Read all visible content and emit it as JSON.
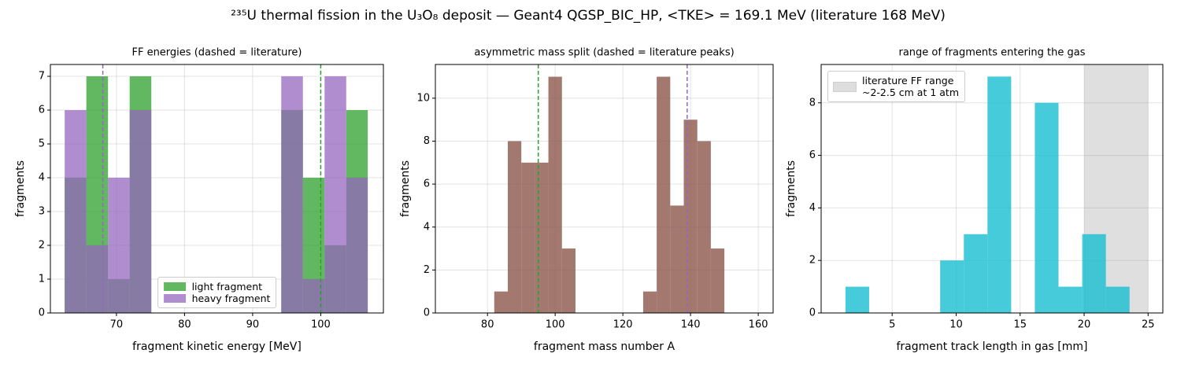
{
  "title": "²³⁵U thermal fission in the U₃O₈ deposit — Geant4 QGSP_BIC_HP, <TKE> = 169.1 MeV (literature 168 MeV)",
  "chart_data": [
    {
      "type": "histogram",
      "title": "FF energies (dashed = literature)",
      "xlabel": "fragment kinetic energy [MeV]",
      "ylabel": "fragments",
      "bins": [
        62.4,
        65.58,
        68.76,
        71.94,
        75.12,
        78.3,
        81.48,
        84.66,
        87.84,
        91.02,
        94.2,
        97.38,
        100.56,
        103.74,
        106.9
      ],
      "series": [
        {
          "name": "light fragment",
          "color": "#2ca02c",
          "alpha": 0.75,
          "values": [
            4,
            7,
            1,
            7,
            0,
            0,
            0,
            0,
            0,
            0,
            6,
            4,
            2,
            6
          ]
        },
        {
          "name": "heavy fragment",
          "color": "#9467bd",
          "alpha": 0.75,
          "values": [
            6,
            2,
            4,
            6,
            0,
            0,
            0,
            0,
            0,
            0,
            7,
            1,
            7,
            4
          ]
        }
      ],
      "vlines": [
        {
          "x": 100,
          "color": "#2ca02c",
          "style": "dashed"
        },
        {
          "x": 68,
          "color": "#9467bd",
          "style": "dashed"
        }
      ],
      "xlim": [
        60.3,
        109.2
      ],
      "ylim": [
        0,
        7.35
      ],
      "xticks": [
        70,
        80,
        90,
        100
      ],
      "yticks": [
        0,
        1,
        2,
        3,
        4,
        5,
        6,
        7
      ],
      "grid": true,
      "legend": "lower center"
    },
    {
      "type": "histogram",
      "title": "asymmetric mass split (dashed = literature peaks)",
      "xlabel": "fragment mass number A",
      "ylabel": "fragments",
      "bins": [
        82,
        86,
        90,
        94,
        98,
        102,
        106,
        110,
        114,
        118,
        122,
        126,
        130,
        134,
        138,
        142,
        146,
        150
      ],
      "series": [
        {
          "color": "#8c564b",
          "alpha": 0.8,
          "values": [
            1,
            8,
            7,
            7,
            11,
            3,
            0,
            0,
            0,
            0,
            0,
            1,
            11,
            5,
            9,
            8,
            3
          ]
        }
      ],
      "vlines": [
        {
          "x": 95,
          "color": "#2ca02c",
          "style": "dashed"
        },
        {
          "x": 139,
          "color": "#9467bd",
          "style": "dashed"
        }
      ],
      "xlim": [
        64.6,
        164.4
      ],
      "ylim": [
        0,
        11.57
      ],
      "xticks": [
        80,
        100,
        120,
        140,
        160
      ],
      "yticks": [
        0,
        2,
        4,
        6,
        8,
        10
      ],
      "grid": true
    },
    {
      "type": "histogram",
      "title": "range of fragments entering the gas",
      "xlabel": "fragment track length in gas [mm]",
      "ylabel": "fragments",
      "bins": [
        1.35,
        3.2,
        5.05,
        6.9,
        8.75,
        10.6,
        12.45,
        14.3,
        16.15,
        18.0,
        19.85,
        21.7,
        23.55
      ],
      "series": [
        {
          "color": "#17becf",
          "alpha": 0.8,
          "values": [
            1,
            0,
            0,
            0,
            2,
            3,
            9,
            0,
            8,
            1,
            3,
            1
          ]
        }
      ],
      "spans": [
        {
          "x0": 20,
          "x1": 25,
          "color": "#808080",
          "alpha": 0.25,
          "label": "literature FF range\n~2-2.5 cm at 1 atm"
        }
      ],
      "xlim": [
        -0.55,
        26.15
      ],
      "ylim": [
        0,
        9.46
      ],
      "xticks": [
        5,
        10,
        15,
        20,
        25
      ],
      "yticks": [
        0,
        2,
        4,
        6,
        8
      ],
      "grid": true,
      "legend": "upper left"
    }
  ]
}
